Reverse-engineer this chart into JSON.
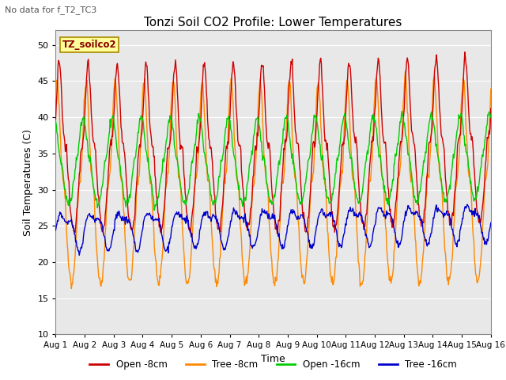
{
  "title": "Tonzi Soil CO2 Profile: Lower Temperatures",
  "subtitle": "No data for f_T2_TC3",
  "legend_label": "TZ_soilco2",
  "xlabel": "Time",
  "ylabel": "Soil Temperatures (C)",
  "ylim": [
    10,
    52
  ],
  "yticks": [
    10,
    15,
    20,
    25,
    30,
    35,
    40,
    45,
    50
  ],
  "x_labels": [
    "Aug 1",
    "Aug 2",
    "Aug 3",
    "Aug 4",
    "Aug 5",
    "Aug 6",
    "Aug 7",
    "Aug 8",
    "Aug 9",
    "Aug 10",
    "Aug 11",
    "Aug 12",
    "Aug 13",
    "Aug 14",
    "Aug 15",
    "Aug 16"
  ],
  "line_colors": {
    "open_8": "#cc0000",
    "tree_8": "#ff8800",
    "open_16": "#00cc00",
    "tree_16": "#0000cc"
  },
  "legend_entries": [
    "Open -8cm",
    "Tree -8cm",
    "Open -16cm",
    "Tree -16cm"
  ],
  "background_color": "#e8e8e8"
}
